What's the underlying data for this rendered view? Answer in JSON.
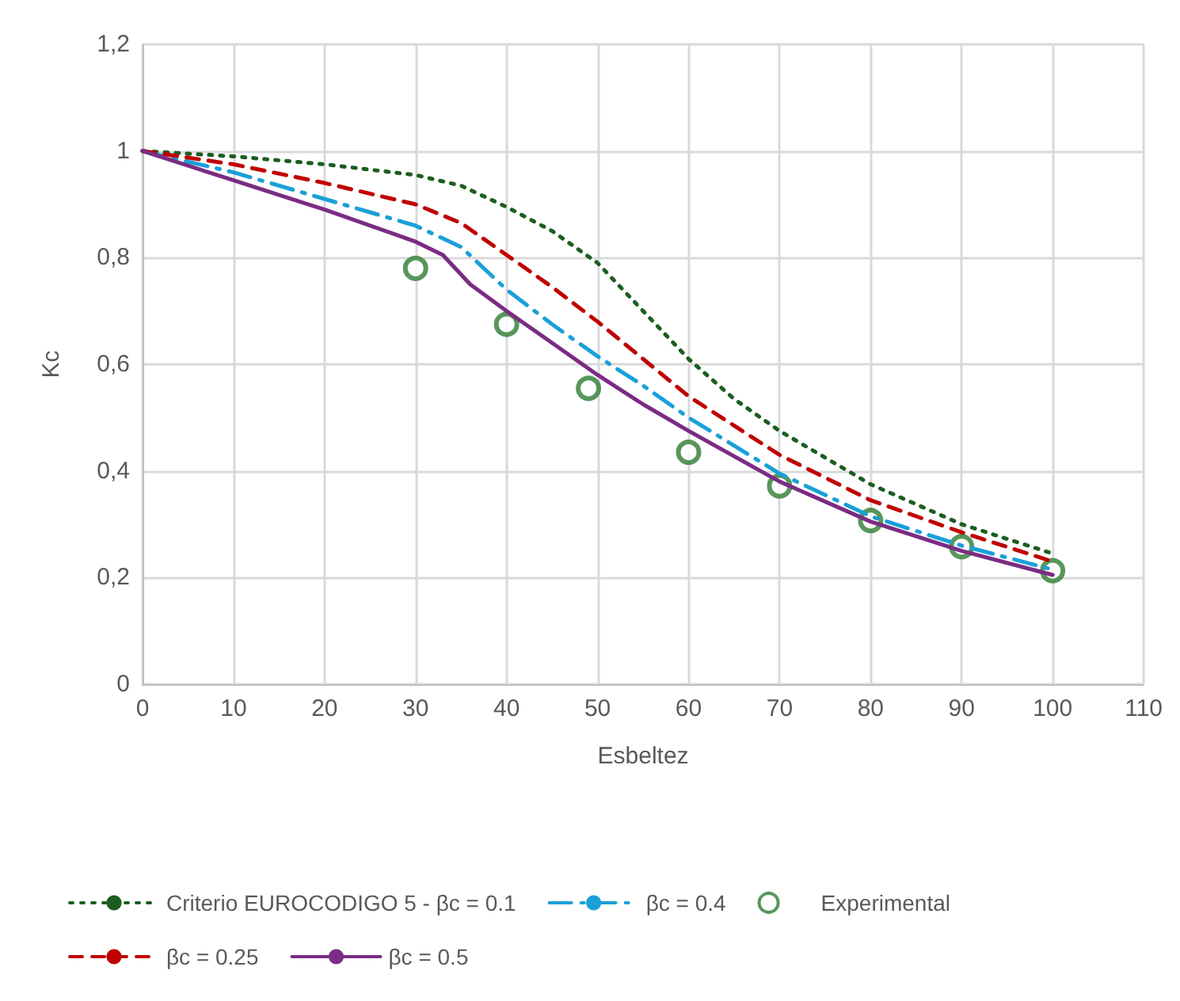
{
  "chart_data": {
    "type": "line",
    "xlabel": "Esbeltez",
    "ylabel": "Kc",
    "xlim": [
      0,
      110
    ],
    "xticks": [
      0,
      10,
      20,
      30,
      40,
      50,
      60,
      70,
      80,
      90,
      100,
      110
    ],
    "ylim": [
      0,
      1.2
    ],
    "yticks": [
      0,
      {
        "value": 0.2,
        "label": "0,2"
      },
      {
        "value": 0.4,
        "label": "0,4"
      },
      {
        "value": 0.6,
        "label": "0,6"
      },
      {
        "value": 0.8,
        "label": "0,8"
      },
      1,
      {
        "value": 1.2,
        "label": "1,2"
      }
    ],
    "grid": true,
    "legend": "bottom",
    "marker": "none",
    "series": [
      {
        "name": "Criterio EUROCODIGO 5 - βc = 0.1",
        "color": "#1b5e20",
        "line_style": "dotted",
        "x": [
          0,
          10,
          20,
          30,
          35,
          40,
          45,
          50,
          55,
          60,
          65,
          70,
          80,
          90,
          100
        ],
        "values": [
          1,
          0.99,
          0.975,
          0.955,
          0.935,
          0.895,
          0.85,
          0.79,
          0.7,
          0.61,
          0.535,
          0.475,
          0.375,
          0.3,
          0.245
        ]
      },
      {
        "name": "βc = 0.4",
        "color": "#1aa0d8",
        "line_style": "dashdot",
        "x": [
          0,
          10,
          20,
          30,
          35,
          40,
          45,
          50,
          55,
          60,
          70,
          80,
          90,
          100
        ],
        "values": [
          1,
          0.96,
          0.91,
          0.86,
          0.82,
          0.74,
          0.675,
          0.615,
          0.56,
          0.5,
          0.395,
          0.315,
          0.26,
          0.215
        ]
      },
      {
        "name": "Experimental",
        "type": "scatter",
        "marker": "circle",
        "color": "#2e7d32",
        "x": [
          30,
          40,
          49,
          60,
          70,
          80,
          90,
          100
        ],
        "values": [
          0.78,
          0.675,
          0.555,
          0.435,
          0.372,
          0.307,
          0.258,
          0.213
        ]
      },
      {
        "name": "βc = 0.25",
        "color": "#c00000",
        "line_style": "dashed",
        "x": [
          0,
          10,
          20,
          30,
          35,
          40,
          45,
          50,
          55,
          60,
          70,
          80,
          90,
          100
        ],
        "values": [
          1,
          0.975,
          0.94,
          0.9,
          0.865,
          0.805,
          0.745,
          0.68,
          0.61,
          0.54,
          0.43,
          0.345,
          0.285,
          0.23
        ]
      },
      {
        "name": "βc = 0.5",
        "color": "#7b2c83",
        "line_style": "solid",
        "x": [
          0,
          10,
          20,
          30,
          33,
          36,
          40,
          45,
          50,
          55,
          60,
          70,
          80,
          90,
          100
        ],
        "values": [
          1,
          0.945,
          0.89,
          0.83,
          0.805,
          0.75,
          0.7,
          0.64,
          0.58,
          0.525,
          0.475,
          0.38,
          0.305,
          0.25,
          0.205
        ]
      }
    ]
  }
}
